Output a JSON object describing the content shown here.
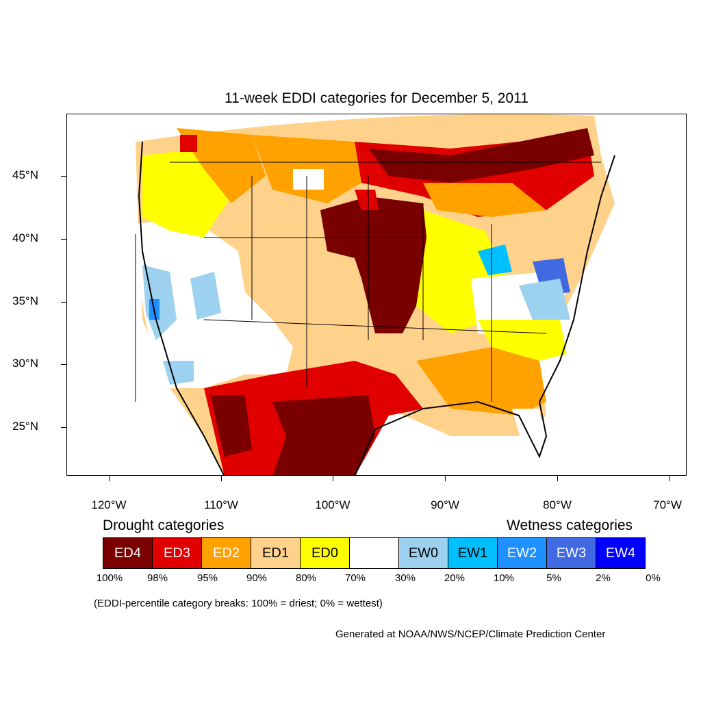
{
  "title": "11-week EDDI categories for December 5, 2011",
  "axes": {
    "lat_labels": [
      "45°N",
      "40°N",
      "35°N",
      "30°N",
      "25°N"
    ],
    "lon_labels": [
      "120°W",
      "110°W",
      "100°W",
      "90°W",
      "80°W",
      "70°W"
    ]
  },
  "legend": {
    "drought_heading": "Drought categories",
    "wetness_heading": "Wetness categories",
    "categories": [
      {
        "label": "ED4",
        "color": "#7a0000",
        "text_color": "#ffffff"
      },
      {
        "label": "ED3",
        "color": "#e00000",
        "text_color": "#ffffff"
      },
      {
        "label": "ED2",
        "color": "#ffa200",
        "text_color": "#ffffff"
      },
      {
        "label": "ED1",
        "color": "#ffd28c",
        "text_color": "#000000"
      },
      {
        "label": "ED0",
        "color": "#ffff00",
        "text_color": "#000000"
      },
      {
        "label": "",
        "color": "#ffffff",
        "text_color": "#000000"
      },
      {
        "label": "EW0",
        "color": "#9dd1f0",
        "text_color": "#000000"
      },
      {
        "label": "EW1",
        "color": "#00bfff",
        "text_color": "#000000"
      },
      {
        "label": "EW2",
        "color": "#1e90ff",
        "text_color": "#ffffff"
      },
      {
        "label": "EW3",
        "color": "#4169e1",
        "text_color": "#ffffff"
      },
      {
        "label": "EW4",
        "color": "#0000ff",
        "text_color": "#ffffff"
      }
    ],
    "breaks": [
      "100%",
      "98%",
      "95%",
      "90%",
      "80%",
      "70%",
      "30%",
      "20%",
      "10%",
      "5%",
      "2%",
      "0%"
    ]
  },
  "note": "(EDDI-percentile category breaks: 100% = driest; 0% = wettest)",
  "credit": "Generated at NOAA/NWS/NCEP/Climate Prediction Center"
}
